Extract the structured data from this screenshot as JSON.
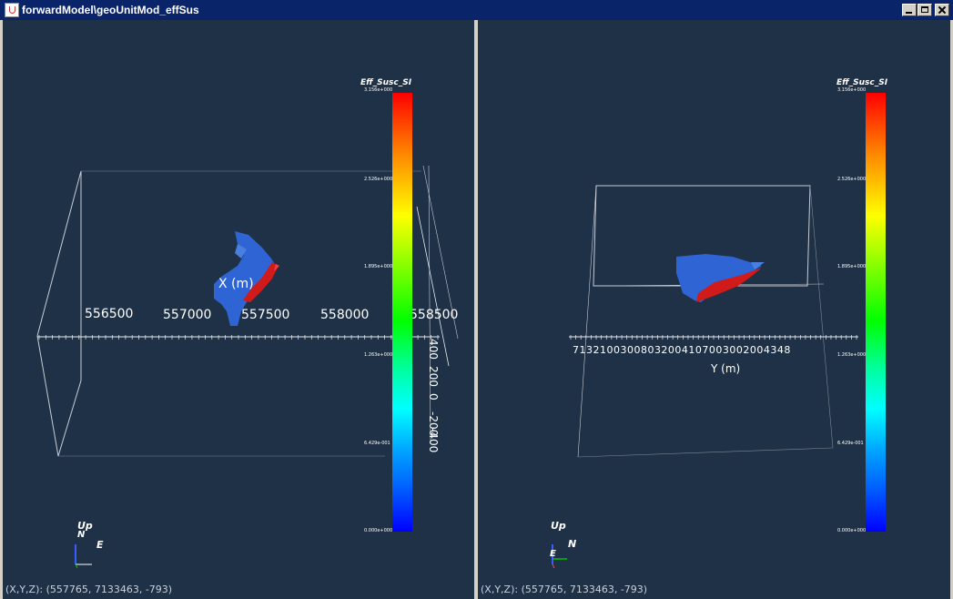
{
  "window": {
    "title": "forwardModel\\geoUnitMod_effSus"
  },
  "left_view": {
    "colorbar": {
      "title": "Eff_Susc_SI",
      "ticks": [
        "3.156e+000",
        "2.526e+000",
        "1.895e+000",
        "1.263e+000",
        "6.429e-001",
        "0.000e+000"
      ]
    },
    "x_axis": {
      "title": "X (m)",
      "ticks": [
        "556500",
        "557000",
        "557500",
        "558000",
        "558500"
      ]
    },
    "z_axis": {
      "ticks": [
        "400",
        "200",
        "0",
        "-200",
        "-400"
      ]
    },
    "orientation": {
      "up": "Up",
      "north": "N",
      "east": "E"
    },
    "coord_readout": "(X,Y,Z): (557765, 7133463,  -793)"
  },
  "right_view": {
    "colorbar": {
      "title": "Eff_Susc_SI",
      "ticks": [
        "3.156e+000",
        "2.526e+000",
        "1.895e+000",
        "1.263e+000",
        "6.429e-001",
        "0.000e+000"
      ]
    },
    "y_axis": {
      "title": "Y (m)",
      "ticks": "7 1 3 2 1 0 0 3 0 0 8 0 3 2 0 0 4 1 0 7 0 0 3 0 0 2 0 0 4 3 4 8"
    },
    "orientation": {
      "up": "Up",
      "north": "N",
      "east": "E"
    },
    "coord_readout": "(X,Y,Z): (557765, 7133463,  -793)"
  },
  "colors": {
    "viewport_bg": "#1f3146",
    "model_blue": "#2e64d4",
    "model_red": "#d11a1a"
  }
}
